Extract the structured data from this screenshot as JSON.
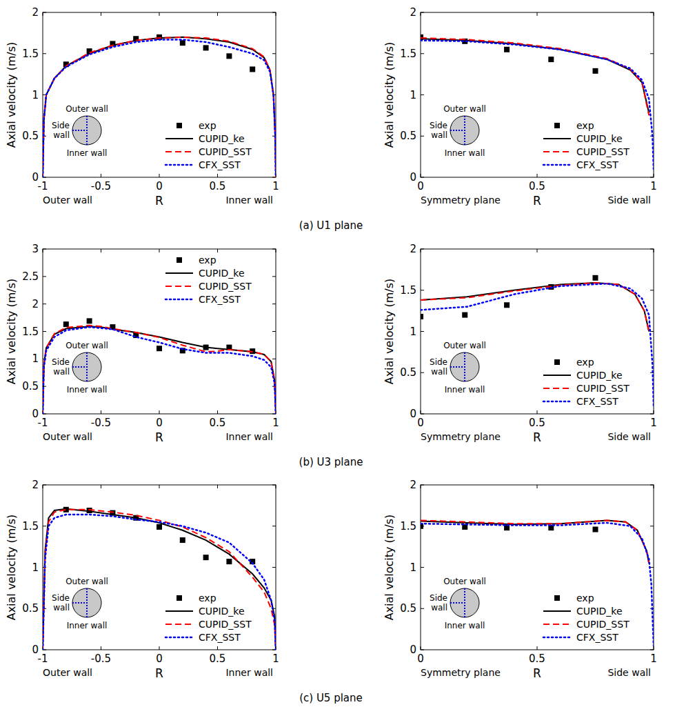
{
  "chart_data": [
    {
      "type": "line",
      "title": "(a) U1 plane",
      "xlabel": "R",
      "ylabel": "Axial velocity (m/s)",
      "annotations": [
        "Outer wall",
        "Inner wall"
      ],
      "inset_labels": [
        "Outer wall",
        "Side wall",
        "Inner wall"
      ],
      "xlim": [
        -1,
        1
      ],
      "xticks": [
        -1,
        -0.5,
        0,
        0.5,
        1
      ],
      "ylim": [
        0,
        2
      ],
      "yticks": [
        0,
        0.5,
        1,
        1.5,
        2
      ],
      "legend": "lower right",
      "series": [
        {
          "name": "exp",
          "type": "scatter",
          "marker": "square",
          "color": "#000000",
          "x": [
            -0.8,
            -0.6,
            -0.4,
            -0.2,
            0,
            0.2,
            0.4,
            0.6,
            0.8
          ],
          "values": [
            1.37,
            1.53,
            1.62,
            1.68,
            1.7,
            1.63,
            1.57,
            1.47,
            1.31
          ]
        },
        {
          "name": "CUPID_ke",
          "line_style": "solid",
          "color": "#000000",
          "x": [
            -1,
            -0.99,
            -0.97,
            -0.9,
            -0.8,
            -0.6,
            -0.4,
            -0.2,
            0,
            0.2,
            0.4,
            0.6,
            0.8,
            0.9,
            0.95,
            0.98,
            0.995,
            1
          ],
          "values": [
            0,
            0.7,
            1.0,
            1.2,
            1.35,
            1.5,
            1.6,
            1.66,
            1.69,
            1.7,
            1.68,
            1.64,
            1.55,
            1.45,
            1.3,
            1.0,
            0.5,
            0
          ]
        },
        {
          "name": "CUPID_SST",
          "line_style": "dashed",
          "color": "#ff0000",
          "x": [
            -1,
            -0.99,
            -0.97,
            -0.9,
            -0.8,
            -0.6,
            -0.4,
            -0.2,
            0,
            0.2,
            0.4,
            0.6,
            0.8,
            0.9,
            0.95,
            0.98,
            0.995,
            1
          ],
          "values": [
            0,
            0.7,
            1.0,
            1.2,
            1.35,
            1.51,
            1.6,
            1.66,
            1.69,
            1.7,
            1.69,
            1.65,
            1.56,
            1.46,
            1.3,
            1.0,
            0.5,
            0
          ]
        },
        {
          "name": "CFX_SST",
          "line_style": "dotted",
          "color": "#0000ff",
          "x": [
            -1,
            -0.99,
            -0.97,
            -0.9,
            -0.8,
            -0.6,
            -0.4,
            -0.2,
            0,
            0.2,
            0.4,
            0.6,
            0.8,
            0.9,
            0.95,
            0.98,
            0.995,
            1
          ],
          "values": [
            0,
            0.7,
            1.0,
            1.2,
            1.34,
            1.49,
            1.58,
            1.64,
            1.67,
            1.67,
            1.64,
            1.58,
            1.5,
            1.42,
            1.28,
            1.0,
            0.5,
            0
          ]
        }
      ]
    },
    {
      "type": "line",
      "xlabel": "R",
      "ylabel": "Axial velocity (m/s)",
      "annotations": [
        "Symmetry plane",
        "Side wall"
      ],
      "inset_labels": [
        "Outer wall",
        "Side wall",
        "Inner wall"
      ],
      "xlim": [
        0,
        1
      ],
      "xticks": [
        0,
        0.5,
        1
      ],
      "ylim": [
        0,
        2
      ],
      "yticks": [
        0,
        0.5,
        1,
        1.5,
        2
      ],
      "legend": "lower right",
      "series": [
        {
          "name": "exp",
          "type": "scatter",
          "marker": "square",
          "color": "#000000",
          "x": [
            0,
            0.19,
            0.37,
            0.56,
            0.75
          ],
          "values": [
            1.7,
            1.65,
            1.55,
            1.43,
            1.29
          ]
        },
        {
          "name": "CUPID_ke",
          "line_style": "solid",
          "color": "#000000",
          "x": [
            0,
            0.2,
            0.4,
            0.6,
            0.8,
            0.9,
            0.95,
            0.98
          ],
          "values": [
            1.68,
            1.66,
            1.62,
            1.55,
            1.43,
            1.3,
            1.15,
            0.78
          ]
        },
        {
          "name": "CUPID_SST",
          "line_style": "dashed",
          "color": "#ff0000",
          "x": [
            0,
            0.2,
            0.4,
            0.6,
            0.8,
            0.9,
            0.95,
            0.98
          ],
          "values": [
            1.69,
            1.67,
            1.63,
            1.56,
            1.44,
            1.31,
            1.15,
            0.75
          ]
        },
        {
          "name": "CFX_SST",
          "line_style": "dotted",
          "color": "#0000ff",
          "x": [
            0,
            0.2,
            0.4,
            0.6,
            0.8,
            0.9,
            0.95,
            0.98,
            0.995,
            1
          ],
          "values": [
            1.66,
            1.65,
            1.61,
            1.55,
            1.43,
            1.32,
            1.18,
            0.95,
            0.5,
            0.1
          ]
        }
      ]
    },
    {
      "type": "line",
      "title": "(b) U3 plane",
      "xlabel": "R",
      "ylabel": "Axial velocity (m/s)",
      "annotations": [
        "Outer wall",
        "Inner wall"
      ],
      "inset_labels": [
        "Outer wall",
        "Side wall",
        "Inner wall"
      ],
      "xlim": [
        -1,
        1
      ],
      "xticks": [
        -1,
        -0.5,
        0,
        0.5,
        1
      ],
      "ylim": [
        0,
        3
      ],
      "yticks": [
        0,
        0.5,
        1,
        1.5,
        2,
        2.5,
        3
      ],
      "legend": "upper right",
      "series": [
        {
          "name": "exp",
          "type": "scatter",
          "marker": "square",
          "color": "#000000",
          "x": [
            -0.8,
            -0.6,
            -0.4,
            -0.2,
            0,
            0.2,
            0.4,
            0.6,
            0.8
          ],
          "values": [
            1.63,
            1.69,
            1.58,
            1.43,
            1.19,
            1.15,
            1.21,
            1.21,
            1.14
          ]
        },
        {
          "name": "CUPID_ke",
          "line_style": "solid",
          "color": "#000000",
          "x": [
            -1,
            -0.99,
            -0.97,
            -0.9,
            -0.8,
            -0.6,
            -0.5,
            -0.4,
            -0.2,
            0,
            0.2,
            0.4,
            0.5,
            0.6,
            0.8,
            0.9,
            0.96,
            0.99,
            1
          ],
          "values": [
            0,
            0.9,
            1.2,
            1.45,
            1.55,
            1.59,
            1.58,
            1.54,
            1.48,
            1.4,
            1.3,
            1.21,
            1.19,
            1.17,
            1.13,
            1.08,
            0.95,
            0.6,
            0
          ]
        },
        {
          "name": "CUPID_SST",
          "line_style": "dashed",
          "color": "#ff0000",
          "x": [
            -1,
            -0.99,
            -0.97,
            -0.9,
            -0.8,
            -0.6,
            -0.5,
            -0.4,
            -0.2,
            0,
            0.2,
            0.4,
            0.5,
            0.6,
            0.8,
            0.9,
            0.96,
            0.99,
            1
          ],
          "values": [
            0,
            0.9,
            1.2,
            1.46,
            1.57,
            1.61,
            1.59,
            1.55,
            1.48,
            1.39,
            1.25,
            1.13,
            1.14,
            1.17,
            1.13,
            1.08,
            0.95,
            0.6,
            0
          ]
        },
        {
          "name": "CFX_SST",
          "line_style": "dotted",
          "color": "#0000ff",
          "x": [
            -1,
            -0.99,
            -0.97,
            -0.9,
            -0.8,
            -0.6,
            -0.4,
            -0.2,
            0,
            0.2,
            0.4,
            0.6,
            0.8,
            0.9,
            0.96,
            0.99,
            1
          ],
          "values": [
            0,
            0.85,
            1.15,
            1.4,
            1.52,
            1.58,
            1.54,
            1.4,
            1.3,
            1.18,
            1.11,
            1.11,
            1.05,
            0.98,
            0.85,
            0.55,
            0
          ]
        }
      ]
    },
    {
      "type": "line",
      "xlabel": "R",
      "ylabel": "Axial velocity (m/s)",
      "annotations": [
        "Symmetry plane",
        "Side wall"
      ],
      "inset_labels": [
        "Outer wall",
        "Side wall",
        "Inner wall"
      ],
      "xlim": [
        0,
        1
      ],
      "xticks": [
        0,
        0.5,
        1
      ],
      "ylim": [
        0,
        2
      ],
      "yticks": [
        0,
        0.5,
        1,
        1.5,
        2
      ],
      "legend": "lower right",
      "series": [
        {
          "name": "exp",
          "type": "scatter",
          "marker": "square",
          "color": "#000000",
          "x": [
            0,
            0.19,
            0.37,
            0.56,
            0.75
          ],
          "values": [
            1.18,
            1.2,
            1.32,
            1.54,
            1.65
          ]
        },
        {
          "name": "CUPID_ke",
          "line_style": "solid",
          "color": "#000000",
          "x": [
            0,
            0.2,
            0.4,
            0.6,
            0.75,
            0.85,
            0.92,
            0.96,
            0.98
          ],
          "values": [
            1.38,
            1.42,
            1.5,
            1.57,
            1.59,
            1.57,
            1.45,
            1.25,
            1.0
          ]
        },
        {
          "name": "CUPID_SST",
          "line_style": "dashed",
          "color": "#ff0000",
          "x": [
            0,
            0.2,
            0.4,
            0.6,
            0.75,
            0.85,
            0.92,
            0.96,
            0.98
          ],
          "values": [
            1.38,
            1.41,
            1.49,
            1.56,
            1.59,
            1.57,
            1.45,
            1.25,
            1.0
          ]
        },
        {
          "name": "CFX_SST",
          "line_style": "dotted",
          "color": "#0000ff",
          "x": [
            0,
            0.2,
            0.4,
            0.6,
            0.8,
            0.9,
            0.95,
            0.98,
            0.995,
            1
          ],
          "values": [
            1.26,
            1.3,
            1.45,
            1.55,
            1.58,
            1.52,
            1.4,
            1.2,
            0.6,
            0.1
          ]
        }
      ]
    },
    {
      "type": "line",
      "title": "(c) U5 plane",
      "xlabel": "R",
      "ylabel": "Axial velocity (m/s)",
      "annotations": [
        "Outer wall",
        "Inner wall"
      ],
      "inset_labels": [
        "Outer wall",
        "Side wall",
        "Inner wall"
      ],
      "xlim": [
        -1,
        1
      ],
      "xticks": [
        -1,
        -0.5,
        0,
        0.5,
        1
      ],
      "ylim": [
        0,
        2
      ],
      "yticks": [
        0,
        0.5,
        1,
        1.5,
        2
      ],
      "legend": "lower right",
      "series": [
        {
          "name": "exp",
          "type": "scatter",
          "marker": "square",
          "color": "#000000",
          "x": [
            -0.8,
            -0.6,
            -0.4,
            -0.2,
            0,
            0.2,
            0.4,
            0.6,
            0.8
          ],
          "values": [
            1.7,
            1.69,
            1.66,
            1.6,
            1.49,
            1.33,
            1.12,
            1.07,
            1.07
          ]
        },
        {
          "name": "CUPID_ke",
          "line_style": "solid",
          "color": "#000000",
          "x": [
            -1,
            -0.98,
            -0.95,
            -0.9,
            -0.8,
            -0.6,
            -0.4,
            -0.2,
            0,
            0.2,
            0.4,
            0.6,
            0.8,
            0.9,
            0.96,
            0.99,
            1
          ],
          "values": [
            0,
            1.2,
            1.6,
            1.69,
            1.71,
            1.68,
            1.64,
            1.6,
            1.54,
            1.45,
            1.33,
            1.16,
            0.92,
            0.75,
            0.6,
            0.4,
            0
          ]
        },
        {
          "name": "CUPID_SST",
          "line_style": "dashed",
          "color": "#ff0000",
          "x": [
            -1,
            -0.98,
            -0.95,
            -0.9,
            -0.8,
            -0.6,
            -0.4,
            -0.2,
            0,
            0.2,
            0.4,
            0.6,
            0.8,
            0.9,
            0.96,
            0.99,
            1
          ],
          "values": [
            0,
            1.15,
            1.55,
            1.67,
            1.7,
            1.7,
            1.67,
            1.63,
            1.57,
            1.49,
            1.36,
            1.19,
            0.88,
            0.7,
            0.5,
            0.3,
            0
          ]
        },
        {
          "name": "CFX_SST",
          "line_style": "dotted",
          "color": "#0000ff",
          "x": [
            -1,
            -0.98,
            -0.95,
            -0.9,
            -0.8,
            -0.6,
            -0.4,
            -0.2,
            0,
            0.2,
            0.4,
            0.6,
            0.8,
            0.9,
            0.96,
            0.99,
            1
          ],
          "values": [
            0,
            1.1,
            1.5,
            1.6,
            1.64,
            1.64,
            1.62,
            1.58,
            1.55,
            1.5,
            1.42,
            1.3,
            1.05,
            0.85,
            0.6,
            0.35,
            0
          ]
        }
      ]
    },
    {
      "type": "line",
      "xlabel": "R",
      "ylabel": "Axial velocity (m/s)",
      "annotations": [
        "Symmetry plane",
        "Side wall"
      ],
      "inset_labels": [
        "Outer wall",
        "Side wall",
        "Inner wall"
      ],
      "xlim": [
        0,
        1
      ],
      "xticks": [
        0,
        0.5,
        1
      ],
      "ylim": [
        0,
        2
      ],
      "yticks": [
        0,
        0.5,
        1,
        1.5,
        2
      ],
      "legend": "lower right",
      "series": [
        {
          "name": "exp",
          "type": "scatter",
          "marker": "square",
          "color": "#000000",
          "x": [
            0,
            0.19,
            0.37,
            0.56,
            0.75
          ],
          "values": [
            1.5,
            1.49,
            1.48,
            1.48,
            1.46
          ]
        },
        {
          "name": "CUPID_ke",
          "line_style": "solid",
          "color": "#000000",
          "x": [
            0,
            0.2,
            0.4,
            0.6,
            0.8,
            0.88,
            0.93,
            0.97,
            0.98
          ],
          "values": [
            1.56,
            1.54,
            1.52,
            1.53,
            1.57,
            1.55,
            1.45,
            1.2,
            1.05
          ]
        },
        {
          "name": "CUPID_SST",
          "line_style": "dashed",
          "color": "#ff0000",
          "x": [
            0,
            0.2,
            0.4,
            0.6,
            0.8,
            0.88,
            0.93,
            0.97,
            0.98
          ],
          "values": [
            1.57,
            1.55,
            1.53,
            1.53,
            1.57,
            1.55,
            1.45,
            1.2,
            1.05
          ]
        },
        {
          "name": "CFX_SST",
          "line_style": "dotted",
          "color": "#0000ff",
          "x": [
            0,
            0.2,
            0.4,
            0.6,
            0.8,
            0.9,
            0.95,
            0.98,
            0.99,
            1
          ],
          "values": [
            1.53,
            1.52,
            1.51,
            1.51,
            1.54,
            1.5,
            1.35,
            1.1,
            0.8,
            0.05
          ]
        }
      ]
    }
  ]
}
